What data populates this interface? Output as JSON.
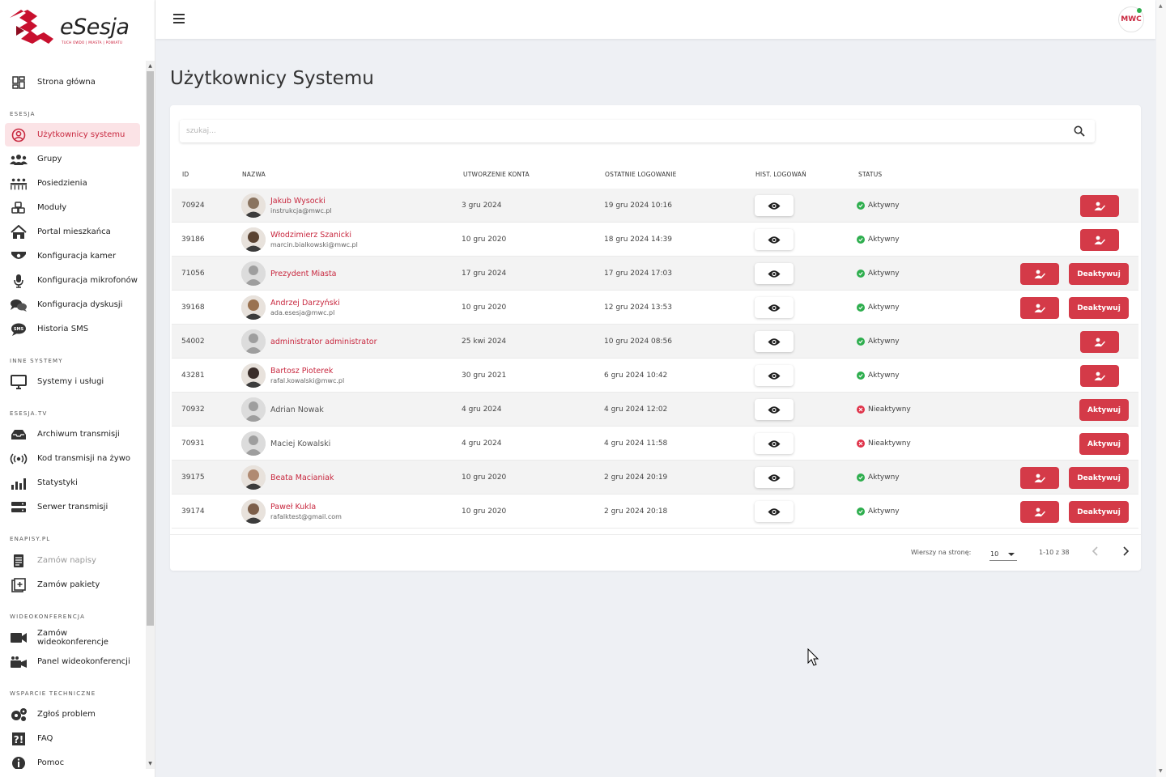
{
  "brand": {
    "name": "eSesja",
    "tagline": "TUCH OWDO | MIASTA | POWIATU"
  },
  "colors": {
    "accent": "#d43a48",
    "active_bg": "#fbe3e6",
    "ok": "#2eae4e",
    "bad": "#e0334a"
  },
  "sidebar": {
    "home": "Strona główna",
    "sections": {
      "esesja": "ESESJA",
      "inne": "INNE SYSTEMY",
      "tv": "ESESJA.TV",
      "enapisy": "ENAPISY.PL",
      "wideo": "WIDEOKONFERENCJA",
      "wsparcie": "WSPARCIE TECHNICZNE"
    },
    "items": [
      {
        "label": "Użytkownicy systemu",
        "icon": "user-circle-icon"
      },
      {
        "label": "Grupy",
        "icon": "users-icon"
      },
      {
        "label": "Posiedzienia",
        "icon": "meeting-icon"
      },
      {
        "label": "Moduły",
        "icon": "cubes-icon"
      },
      {
        "label": "Portal mieszkańca",
        "icon": "house-icon"
      },
      {
        "label": "Konfiguracja kamer",
        "icon": "camera-icon"
      },
      {
        "label": "Konfiguracja mikrofonów",
        "icon": "microphone-icon"
      },
      {
        "label": "Konfiguracja dyskusji",
        "icon": "comments-icon"
      },
      {
        "label": "Historia SMS",
        "icon": "sms-icon"
      },
      {
        "label": "Systemy i usługi",
        "icon": "monitor-icon"
      },
      {
        "label": "Archiwum transmisji",
        "icon": "inbox-icon"
      },
      {
        "label": "Kod transmisji na żywo",
        "icon": "broadcast-icon"
      },
      {
        "label": "Statystyki",
        "icon": "bar-chart-icon"
      },
      {
        "label": "Serwer transmisji",
        "icon": "server-icon"
      },
      {
        "label": "Zamów napisy",
        "icon": "document-icon"
      },
      {
        "label": "Zamów pakiety",
        "icon": "plus-box-icon"
      },
      {
        "label": "Zamów wideokonferencje",
        "icon": "video-icon"
      },
      {
        "label": "Panel wideokonferencji",
        "icon": "video-panel-icon"
      },
      {
        "label": "Zgłoś problem",
        "icon": "gears-icon"
      },
      {
        "label": "FAQ",
        "icon": "question-icon"
      },
      {
        "label": "Pomoc",
        "icon": "info-icon"
      }
    ]
  },
  "header": {
    "user_initials": "MWC"
  },
  "page": {
    "title": "Użytkownicy Systemu"
  },
  "search": {
    "placeholder": "szukaj..."
  },
  "table": {
    "columns": [
      "ID",
      "NAZWA",
      "UTWORZENIE KONTA",
      "OSTATNIE LOGOWANIE",
      "HIST. LOGOWAŃ",
      "STATUS"
    ],
    "rows": [
      {
        "id": "70924",
        "name": "Jakub Wysocki",
        "email": "instrukcja@mwc.pl",
        "created": "3 gru 2024",
        "last": "19 gru 2024 10:16",
        "status": "Aktywny",
        "avatar": "photo"
      },
      {
        "id": "39186",
        "name": "Włodzimierz Szanicki",
        "email": "marcin.bialkowski@mwc.pl",
        "created": "10 gru 2020",
        "last": "18 gru 2024 14:39",
        "status": "Aktywny",
        "avatar": "photo"
      },
      {
        "id": "71056",
        "name": "Prezydent Miasta",
        "email": "",
        "created": "17 gru 2024",
        "last": "17 gru 2024 17:03",
        "status": "Aktywny",
        "avatar": "placeholder"
      },
      {
        "id": "39168",
        "name": "Andrzej Darzyński",
        "email": "ada.esesja@mwc.pl",
        "created": "10 gru 2020",
        "last": "12 gru 2024 13:53",
        "status": "Aktywny",
        "avatar": "photo"
      },
      {
        "id": "54002",
        "name": "administrator administrator",
        "email": "",
        "created": "25 kwi 2024",
        "last": "10 gru 2024 08:56",
        "status": "Aktywny",
        "avatar": "placeholder"
      },
      {
        "id": "43281",
        "name": "Bartosz Pioterek",
        "email": "rafal.kowalski@mwc.pl",
        "created": "30 gru 2021",
        "last": "6 gru 2024 10:42",
        "status": "Aktywny",
        "avatar": "photo"
      },
      {
        "id": "70932",
        "name": "Adrian Nowak",
        "email": "",
        "created": "4 gru 2024",
        "last": "4 gru 2024 12:02",
        "status": "Nieaktywny",
        "avatar": "placeholder"
      },
      {
        "id": "70931",
        "name": "Maciej Kowalski",
        "email": "",
        "created": "4 gru 2024",
        "last": "4 gru 2024 11:58",
        "status": "Nieaktywny",
        "avatar": "placeholder"
      },
      {
        "id": "39175",
        "name": "Beata Macianiak",
        "email": "",
        "created": "10 gru 2020",
        "last": "2 gru 2024 20:19",
        "status": "Aktywny",
        "avatar": "photo"
      },
      {
        "id": "39174",
        "name": "Paweł Kukla",
        "email": "rafalktest@gmail.com",
        "created": "10 gru 2020",
        "last": "2 gru 2024 20:18",
        "status": "Aktywny",
        "avatar": "photo"
      }
    ],
    "btn_deactivate": "Deaktywuj",
    "btn_activate": "Aktywuj"
  },
  "pagination": {
    "rows_label": "Wierszy na stronę:",
    "rows_value": "10",
    "range": "1-10 z 38"
  }
}
